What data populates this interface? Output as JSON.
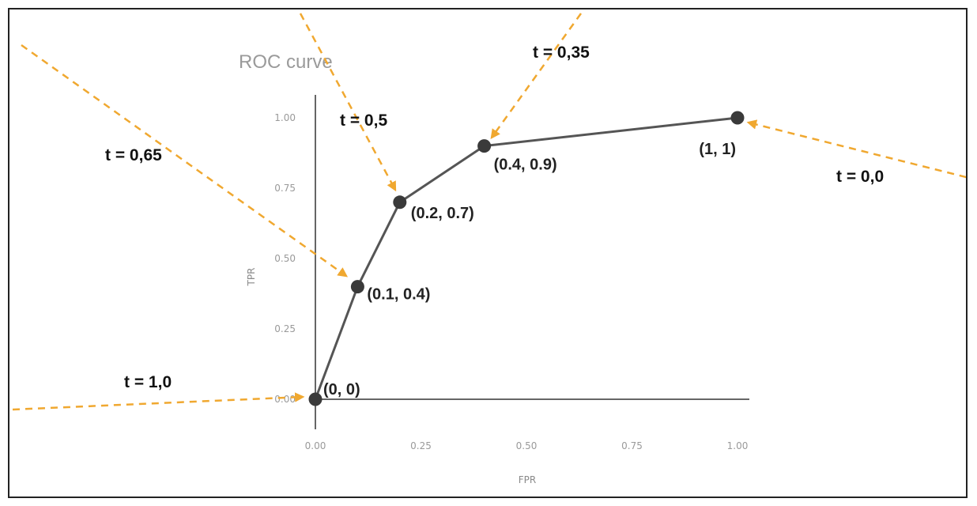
{
  "chart_data": {
    "type": "line",
    "title": "ROC curve",
    "xlabel": "FPR",
    "ylabel": "TPR",
    "xlim": [
      0,
      1
    ],
    "ylim": [
      0,
      1
    ],
    "x_ticks": [
      "0.00",
      "0.25",
      "0.50",
      "0.75",
      "1.00"
    ],
    "y_ticks": [
      "0.00",
      "0.25",
      "0.50",
      "0.75",
      "1.00"
    ],
    "grid": false,
    "series": [
      {
        "points": [
          {
            "x": 0,
            "y": 0,
            "label": "(0, 0)",
            "threshold": "t = 1,0"
          },
          {
            "x": 0.1,
            "y": 0.4,
            "label": "(0.1, 0.4)",
            "threshold": "t = 0,65"
          },
          {
            "x": 0.2,
            "y": 0.7,
            "label": "(0.2, 0.7)",
            "threshold": "t = 0,5"
          },
          {
            "x": 0.4,
            "y": 0.9,
            "label": "(0.4, 0.9)",
            "threshold": "t = 0,35"
          },
          {
            "x": 1,
            "y": 1,
            "label": "(1, 1)",
            "threshold": "t = 0,0"
          }
        ]
      }
    ],
    "colors": {
      "line": "#555555",
      "point": "#3a3a3a",
      "arrow": "#f0a830",
      "axis": "#666666"
    }
  }
}
